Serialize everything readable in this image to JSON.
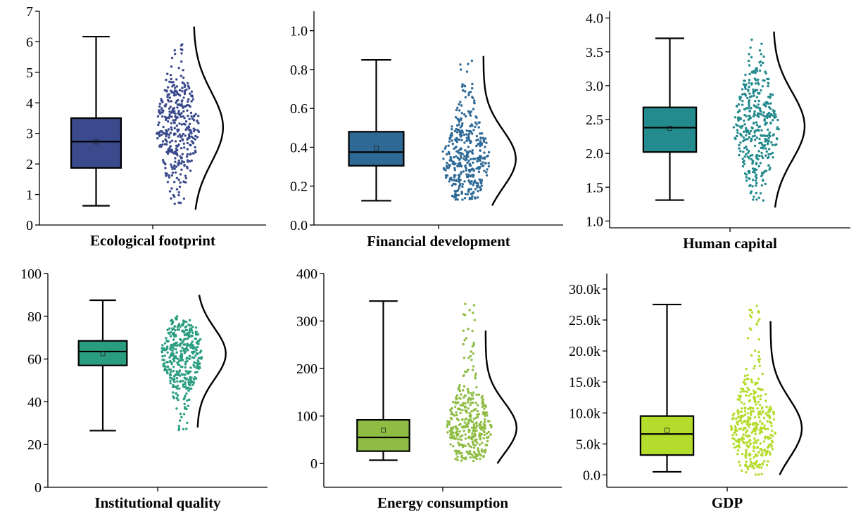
{
  "chart_data": [
    {
      "type": "box",
      "xlabel": "Ecological footprint",
      "ylabel": "",
      "ylim": [
        0,
        7
      ],
      "yticks": [
        0,
        1,
        2,
        3,
        4,
        5,
        6,
        7
      ],
      "ytick_labels": [
        "0",
        "1",
        "2",
        "3",
        "4",
        "5",
        "6",
        "7"
      ],
      "box": {
        "min": 0.63,
        "q1": 1.87,
        "median": 2.73,
        "mean": 2.72,
        "q3": 3.5,
        "max": 6.17
      },
      "distribution_curve": {
        "peak_at": 3.2,
        "range": [
          0.5,
          6.5
        ]
      },
      "points_range": [
        0.65,
        6.0
      ],
      "color": "#3b4a8c"
    },
    {
      "type": "box",
      "xlabel": "Financial development",
      "ylabel": "",
      "ylim": [
        0,
        1.1
      ],
      "yticks": [
        0,
        0.2,
        0.4,
        0.6,
        0.8,
        1.0
      ],
      "ytick_labels": [
        "0.0",
        "0.2",
        "0.4",
        "0.6",
        "0.8",
        "1.0"
      ],
      "box": {
        "min": 0.125,
        "q1": 0.305,
        "median": 0.375,
        "mean": 0.395,
        "q3": 0.48,
        "max": 0.85
      },
      "distribution_curve": {
        "peak_at": 0.34,
        "range": [
          0.1,
          0.87
        ]
      },
      "points_range": [
        0.13,
        0.85
      ],
      "color": "#2f6a97"
    },
    {
      "type": "box",
      "xlabel": "Human capital",
      "ylabel": "",
      "ylim": [
        0.9,
        4.1
      ],
      "yticks": [
        1.0,
        1.5,
        2.0,
        2.5,
        3.0,
        3.5,
        4.0
      ],
      "ytick_labels": [
        "1.0",
        "1.5",
        "2.0",
        "2.5",
        "3.0",
        "3.5",
        "4.0"
      ],
      "box": {
        "min": 1.31,
        "q1": 2.02,
        "median": 2.38,
        "mean": 2.37,
        "q3": 2.68,
        "max": 3.7
      },
      "distribution_curve": {
        "peak_at": 2.4,
        "range": [
          1.2,
          3.8
        ]
      },
      "points_range": [
        1.3,
        3.7
      ],
      "color": "#238a8d"
    },
    {
      "type": "box",
      "xlabel": "Institutional quality",
      "ylabel": "",
      "ylim": [
        0,
        100
      ],
      "yticks": [
        0,
        20,
        40,
        60,
        80,
        100
      ],
      "ytick_labels": [
        "0",
        "20",
        "40",
        "60",
        "80",
        "100"
      ],
      "box": {
        "min": 26.5,
        "q1": 57,
        "median": 63.5,
        "mean": 62.5,
        "q3": 68.5,
        "max": 87.5
      },
      "distribution_curve": {
        "peak_at": 62.5,
        "range": [
          28,
          90
        ]
      },
      "points_range": [
        26.5,
        80
      ],
      "color": "#2a9d80"
    },
    {
      "type": "box",
      "xlabel": "Energy consumption",
      "ylabel": "",
      "ylim": [
        -50,
        400
      ],
      "yticks": [
        0,
        100,
        200,
        300,
        400
      ],
      "ytick_labels": [
        "0",
        "100",
        "200",
        "300",
        "400"
      ],
      "box": {
        "min": 7,
        "q1": 26,
        "median": 55,
        "mean": 70,
        "q3": 92,
        "max": 342
      },
      "distribution_curve": {
        "peak_at": 75,
        "range": [
          0,
          280
        ]
      },
      "points_range": [
        5,
        342
      ],
      "color": "#8fbd44"
    },
    {
      "type": "box",
      "xlabel": "GDP",
      "ylabel": "",
      "ylim": [
        -2000,
        32500
      ],
      "yticks": [
        0,
        5000,
        10000,
        15000,
        20000,
        25000,
        30000
      ],
      "ytick_labels": [
        "0.0",
        "5.0k",
        "10.0k",
        "15.0k",
        "20.0k",
        "25.0k",
        "30.0k"
      ],
      "box": {
        "min": 500,
        "q1": 3200,
        "median": 6600,
        "mean": 7200,
        "q3": 9500,
        "max": 27500
      },
      "distribution_curve": {
        "peak_at": 7500,
        "range": [
          0,
          24800
        ]
      },
      "points_range": [
        0,
        27500
      ],
      "color": "#b4dc2c"
    }
  ]
}
